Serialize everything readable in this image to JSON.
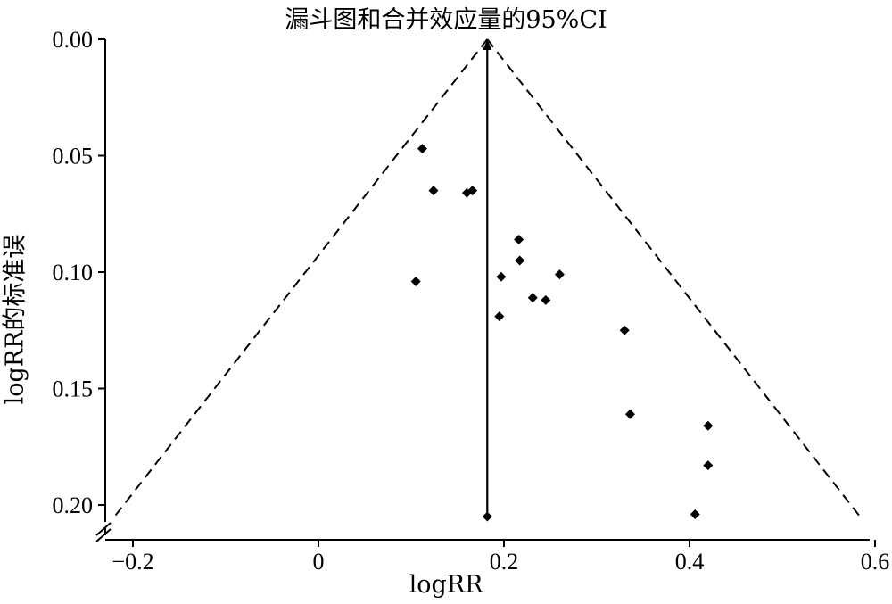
{
  "chart_data": {
    "type": "scatter",
    "title": "漏斗图和合并效应量的95%CI",
    "xlabel": "logRR",
    "ylabel": "logRR的标准误",
    "xlim": [
      -0.23,
      0.6
    ],
    "ylim": [
      0.0,
      0.21
    ],
    "y_inverted": true,
    "x_ticks": [
      -0.2,
      0,
      0.2,
      0.4,
      0.6
    ],
    "x_tick_labels": [
      "−0.2",
      "0",
      "0.2",
      "0.4",
      "0.6"
    ],
    "y_ticks": [
      0.0,
      0.05,
      0.1,
      0.15,
      0.2
    ],
    "y_tick_labels": [
      "0.00",
      "0.05",
      "0.10",
      "0.15",
      "0.20"
    ],
    "pooled_effect": 0.182,
    "funnel": {
      "z": 1.96,
      "se_max": 0.205
    },
    "points": [
      {
        "x": 0.112,
        "y": 0.047
      },
      {
        "x": 0.124,
        "y": 0.065
      },
      {
        "x": 0.16,
        "y": 0.066
      },
      {
        "x": 0.166,
        "y": 0.065
      },
      {
        "x": 0.216,
        "y": 0.086
      },
      {
        "x": 0.217,
        "y": 0.095
      },
      {
        "x": 0.197,
        "y": 0.102
      },
      {
        "x": 0.26,
        "y": 0.101
      },
      {
        "x": 0.105,
        "y": 0.104
      },
      {
        "x": 0.231,
        "y": 0.111
      },
      {
        "x": 0.245,
        "y": 0.112
      },
      {
        "x": 0.195,
        "y": 0.119
      },
      {
        "x": 0.33,
        "y": 0.125
      },
      {
        "x": 0.336,
        "y": 0.161
      },
      {
        "x": 0.42,
        "y": 0.166
      },
      {
        "x": 0.42,
        "y": 0.183
      },
      {
        "x": 0.406,
        "y": 0.204
      },
      {
        "x": 0.182,
        "y": 0.205
      }
    ],
    "grid": false,
    "legend": "none"
  }
}
